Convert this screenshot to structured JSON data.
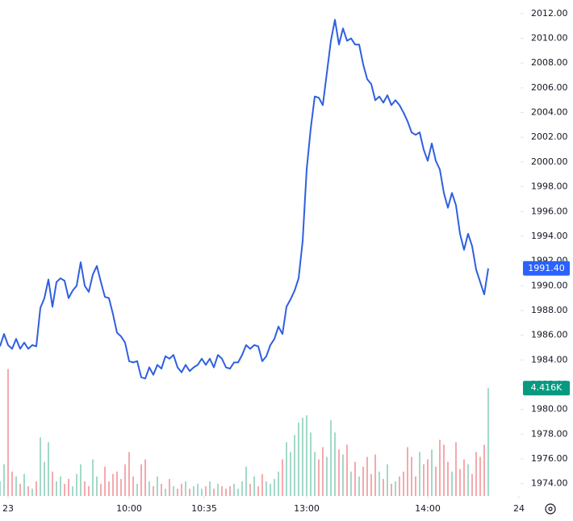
{
  "chart_data": {
    "type": "line",
    "series": [
      {
        "name": "Price",
        "color": "#2f5fe0",
        "values": [
          1985.1,
          1986.1,
          1985.2,
          1984.9,
          1985.7,
          1984.9,
          1985.4,
          1984.9,
          1985.2,
          1985.1,
          1988.2,
          1989.0,
          1990.5,
          1988.3,
          1990.3,
          1990.6,
          1990.4,
          1989.0,
          1989.6,
          1990.0,
          1991.9,
          1990.0,
          1989.5,
          1990.9,
          1991.6,
          1990.3,
          1989.1,
          1989.0,
          1987.7,
          1986.2,
          1985.9,
          1985.4,
          1983.9,
          1983.8,
          1983.9,
          1982.6,
          1982.5,
          1983.4,
          1982.8,
          1983.6,
          1983.3,
          1984.3,
          1984.1,
          1984.4,
          1983.4,
          1983.0,
          1983.6,
          1983.1,
          1983.4,
          1983.6,
          1984.1,
          1983.6,
          1984.1,
          1983.4,
          1984.4,
          1984.1,
          1983.4,
          1983.3,
          1983.8,
          1983.8,
          1984.4,
          1985.2,
          1984.9,
          1985.2,
          1985.1,
          1983.9,
          1984.3,
          1985.2,
          1985.7,
          1986.7,
          1986.1,
          1988.3,
          1988.9,
          1989.6,
          1990.6,
          1993.6,
          1999.4,
          2002.7,
          2005.3,
          2005.2,
          2004.6,
          2007.2,
          2009.8,
          2011.5,
          2009.5,
          2010.8,
          2009.8,
          2010.0,
          2009.5,
          2009.5,
          2007.9,
          2006.7,
          2006.3,
          2005.0,
          2005.3,
          2004.8,
          2005.4,
          2004.6,
          2005.0,
          2004.6,
          2004.0,
          2003.3,
          2002.4,
          2002.2,
          2002.4,
          2001.0,
          2000.1,
          2001.5,
          2000.1,
          1999.4,
          1997.5,
          1996.3,
          1997.5,
          1996.5,
          1994.2,
          1992.9,
          1994.2,
          1993.2,
          1991.3,
          1990.3,
          1989.3,
          1991.4
        ]
      }
    ],
    "volume": {
      "up_color": "#a3d9c9",
      "down_color": "#f5a9ad",
      "values": [
        0.6,
        1.3,
        5.2,
        1.0,
        0.8,
        0.5,
        0.9,
        0.4,
        0.3,
        0.6,
        2.4,
        1.4,
        2.2,
        1.0,
        0.6,
        0.8,
        0.5,
        0.7,
        0.4,
        0.9,
        1.3,
        0.6,
        0.4,
        1.5,
        0.8,
        0.5,
        1.2,
        0.6,
        0.9,
        1.0,
        0.7,
        1.3,
        1.8,
        0.8,
        0.5,
        1.3,
        1.5,
        0.6,
        0.4,
        0.8,
        0.5,
        0.3,
        0.7,
        0.4,
        0.3,
        0.5,
        0.6,
        0.3,
        0.4,
        0.5,
        0.3,
        0.4,
        0.6,
        0.3,
        0.5,
        0.4,
        0.3,
        0.4,
        0.5,
        0.3,
        0.6,
        1.2,
        0.5,
        0.8,
        0.4,
        0.9,
        0.6,
        0.5,
        0.7,
        1.0,
        1.5,
        2.2,
        1.8,
        2.5,
        3.0,
        3.2,
        3.3,
        2.6,
        1.8,
        1.5,
        2.0,
        1.6,
        3.1,
        2.6,
        1.9,
        1.7,
        2.1,
        1.0,
        1.4,
        0.8,
        1.2,
        1.6,
        0.9,
        1.7,
        1.0,
        0.7,
        1.3,
        0.5,
        0.6,
        0.8,
        1.0,
        2.0,
        1.6,
        0.8,
        1.8,
        1.3,
        1.5,
        1.9,
        1.2,
        2.3,
        2.1,
        1.4,
        1.0,
        2.2,
        1.1,
        1.5,
        1.3,
        0.9,
        1.8,
        1.6,
        2.1,
        4.416
      ],
      "vlim": [
        0,
        20.3
      ]
    },
    "xlim": [
      0,
      129
    ],
    "xticks": [
      {
        "value": 2,
        "label": "23"
      },
      {
        "value": 32,
        "label": "10:00"
      },
      {
        "value": 50.6,
        "label": "10:35"
      },
      {
        "value": 76,
        "label": "13:00"
      },
      {
        "value": 106,
        "label": "14:00"
      },
      {
        "value": 128.6,
        "label": "24"
      }
    ],
    "ylim": [
      1973.0,
      2013.1
    ],
    "yticks": [
      {
        "value": 1974,
        "label": "1974.00"
      },
      {
        "value": 1976,
        "label": "1976.00"
      },
      {
        "value": 1978,
        "label": "1978.00"
      },
      {
        "value": 1980,
        "label": "1980.00"
      },
      {
        "value": 1982,
        "label": "1982.00"
      },
      {
        "value": 1984,
        "label": "1984.00"
      },
      {
        "value": 1986,
        "label": "1986.00"
      },
      {
        "value": 1988,
        "label": "1988.00"
      },
      {
        "value": 1990,
        "label": "1990.00"
      },
      {
        "value": 1992,
        "label": "1992.00"
      },
      {
        "value": 1994,
        "label": "1994.00"
      },
      {
        "value": 1996,
        "label": "1996.00"
      },
      {
        "value": 1998,
        "label": "1998.00"
      },
      {
        "value": 2000,
        "label": "2000.00"
      },
      {
        "value": 2002,
        "label": "2002.00"
      },
      {
        "value": 2004,
        "label": "2004.00"
      },
      {
        "value": 2006,
        "label": "2006.00"
      },
      {
        "value": 2008,
        "label": "2008.00"
      },
      {
        "value": 2010,
        "label": "2010.00"
      },
      {
        "value": 2012,
        "label": "2012.00"
      }
    ],
    "last_price": {
      "value": 1991.4,
      "label": "1991.40",
      "color": "#2962ff"
    },
    "last_volume": {
      "value": 4.416,
      "label": "4.416K",
      "color": "#089981"
    }
  }
}
